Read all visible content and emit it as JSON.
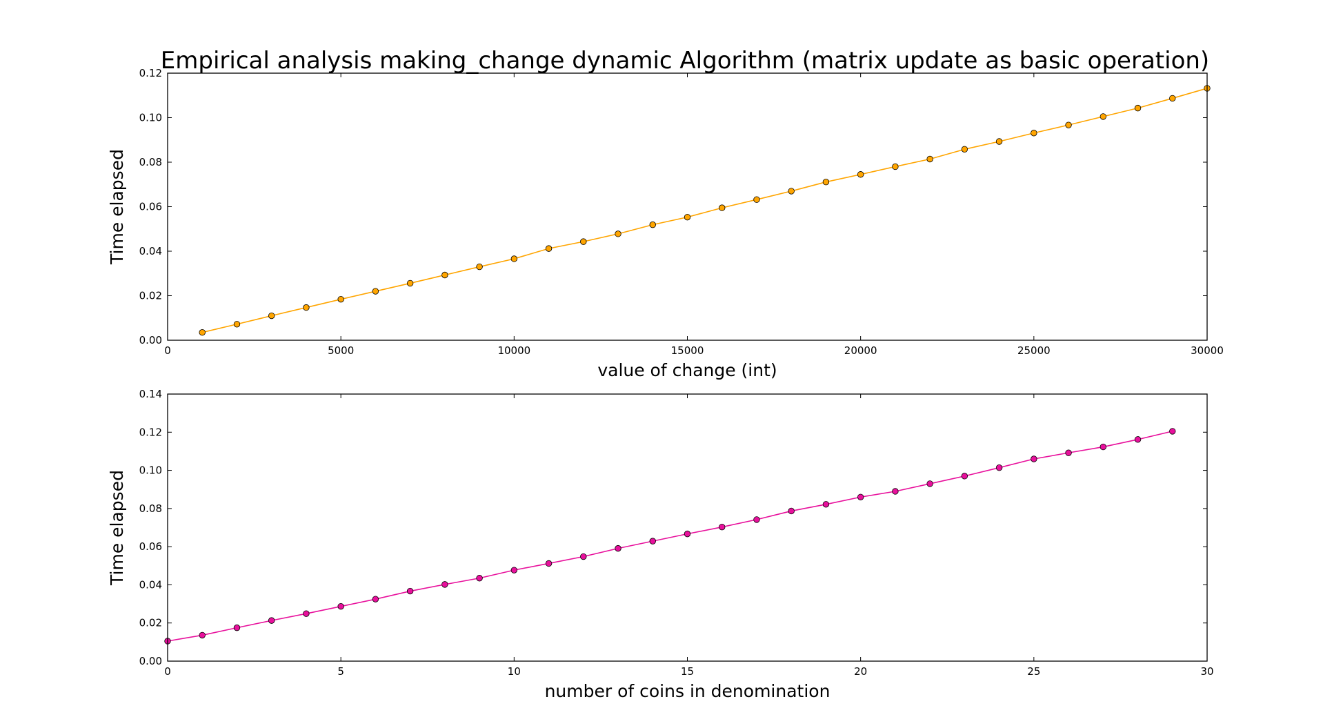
{
  "title": "Empirical analysis making_change dynamic Algorithm (matrix update as basic operation)",
  "chart_data": [
    {
      "type": "line",
      "title": "Empirical analysis making_change dynamic Algorithm (matrix update as basic operation)",
      "xlabel": "value of change (int)",
      "ylabel": "Time elapsed",
      "xlim": [
        0,
        30000
      ],
      "ylim": [
        0,
        0.12
      ],
      "xticks": [
        0,
        5000,
        10000,
        15000,
        20000,
        25000,
        30000
      ],
      "xtick_labels": [
        "0",
        "5000",
        "10000",
        "15000",
        "20000",
        "25000",
        "30000"
      ],
      "yticks": [
        0,
        0.02,
        0.04,
        0.06,
        0.08,
        0.1,
        0.12
      ],
      "ytick_labels": [
        "0.00",
        "0.02",
        "0.04",
        "0.06",
        "0.08",
        "0.10",
        "0.12"
      ],
      "grid": false,
      "marker": "circle",
      "series": [
        {
          "color": "#FFA500",
          "x": [
            1000,
            2000,
            3000,
            4000,
            5000,
            6000,
            7000,
            8000,
            9000,
            10000,
            11000,
            12000,
            13000,
            14000,
            15000,
            16000,
            17000,
            18000,
            19000,
            20000,
            21000,
            22000,
            23000,
            24000,
            25000,
            26000,
            27000,
            28000,
            29000,
            30000
          ],
          "y": [
            0.0035,
            0.0072,
            0.011,
            0.0147,
            0.0184,
            0.022,
            0.0256,
            0.0293,
            0.033,
            0.0366,
            0.0412,
            0.0443,
            0.0478,
            0.0519,
            0.0553,
            0.0595,
            0.0632,
            0.067,
            0.0711,
            0.0745,
            0.078,
            0.0814,
            0.0858,
            0.0893,
            0.0931,
            0.0967,
            0.1005,
            0.1043,
            0.1087,
            0.1132
          ]
        }
      ]
    },
    {
      "type": "line",
      "xlabel": "number of coins in denomination",
      "ylabel": "Time elapsed",
      "xlim": [
        0,
        30
      ],
      "ylim": [
        0,
        0.14
      ],
      "xticks": [
        0,
        5,
        10,
        15,
        20,
        25,
        30
      ],
      "xtick_labels": [
        "0",
        "5",
        "10",
        "15",
        "20",
        "25",
        "30"
      ],
      "yticks": [
        0,
        0.02,
        0.04,
        0.06,
        0.08,
        0.1,
        0.12,
        0.14
      ],
      "ytick_labels": [
        "0.00",
        "0.02",
        "0.04",
        "0.06",
        "0.08",
        "0.10",
        "0.12",
        "0.14"
      ],
      "grid": false,
      "marker": "circle",
      "series": [
        {
          "color": "#E8109C",
          "x": [
            0,
            1,
            2,
            3,
            4,
            5,
            6,
            7,
            8,
            9,
            10,
            11,
            12,
            13,
            14,
            15,
            16,
            17,
            18,
            19,
            20,
            21,
            22,
            23,
            24,
            25,
            26,
            27,
            28,
            29
          ],
          "y": [
            0.0105,
            0.0136,
            0.0175,
            0.0213,
            0.0249,
            0.0287,
            0.0325,
            0.0367,
            0.0402,
            0.0435,
            0.0477,
            0.0512,
            0.0548,
            0.0591,
            0.0629,
            0.0667,
            0.0703,
            0.0742,
            0.0787,
            0.0822,
            0.086,
            0.089,
            0.093,
            0.097,
            0.1014,
            0.106,
            0.1092,
            0.1123,
            0.1162,
            0.1205
          ]
        }
      ]
    }
  ]
}
